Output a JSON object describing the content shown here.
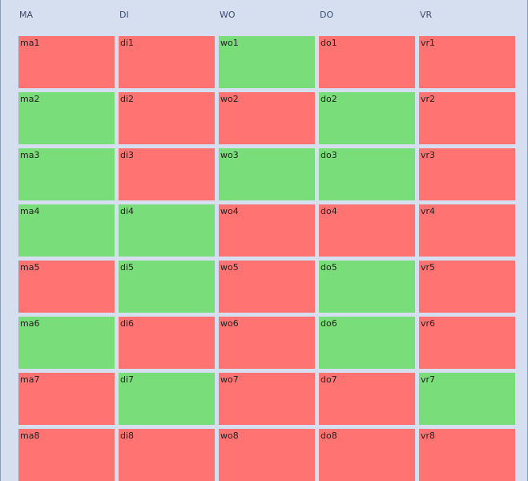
{
  "columns": [
    {
      "header": "MA",
      "cells": [
        {
          "label": "ma1",
          "color": "#ff7373"
        },
        {
          "label": "ma2",
          "color": "#79dd79"
        },
        {
          "label": "ma3",
          "color": "#79dd79"
        },
        {
          "label": "ma4",
          "color": "#79dd79"
        },
        {
          "label": "ma5",
          "color": "#ff7373"
        },
        {
          "label": "ma6",
          "color": "#79dd79"
        },
        {
          "label": "ma7",
          "color": "#ff7373"
        },
        {
          "label": "ma8",
          "color": "#ff7373"
        }
      ]
    },
    {
      "header": "DI",
      "cells": [
        {
          "label": "di1",
          "color": "#ff7373"
        },
        {
          "label": "di2",
          "color": "#ff7373"
        },
        {
          "label": "di3",
          "color": "#ff7373"
        },
        {
          "label": "di4",
          "color": "#79dd79"
        },
        {
          "label": "di5",
          "color": "#79dd79"
        },
        {
          "label": "di6",
          "color": "#ff7373"
        },
        {
          "label": "di7",
          "color": "#79dd79"
        },
        {
          "label": "di8",
          "color": "#ff7373"
        }
      ]
    },
    {
      "header": "WO",
      "cells": [
        {
          "label": "wo1",
          "color": "#79dd79"
        },
        {
          "label": "wo2",
          "color": "#ff7373"
        },
        {
          "label": "wo3",
          "color": "#79dd79"
        },
        {
          "label": "wo4",
          "color": "#ff7373"
        },
        {
          "label": "wo5",
          "color": "#ff7373"
        },
        {
          "label": "wo6",
          "color": "#ff7373"
        },
        {
          "label": "wo7",
          "color": "#ff7373"
        },
        {
          "label": "wo8",
          "color": "#ff7373"
        }
      ]
    },
    {
      "header": "DO",
      "cells": [
        {
          "label": "do1",
          "color": "#ff7373"
        },
        {
          "label": "do2",
          "color": "#79dd79"
        },
        {
          "label": "do3",
          "color": "#79dd79"
        },
        {
          "label": "do4",
          "color": "#ff7373"
        },
        {
          "label": "do5",
          "color": "#79dd79"
        },
        {
          "label": "do6",
          "color": "#79dd79"
        },
        {
          "label": "do7",
          "color": "#ff7373"
        },
        {
          "label": "do8",
          "color": "#ff7373"
        }
      ]
    },
    {
      "header": "VR",
      "cells": [
        {
          "label": "vr1",
          "color": "#ff7373"
        },
        {
          "label": "vr2",
          "color": "#ff7373"
        },
        {
          "label": "vr3",
          "color": "#ff7373"
        },
        {
          "label": "vr4",
          "color": "#ff7373"
        },
        {
          "label": "vr5",
          "color": "#ff7373"
        },
        {
          "label": "vr6",
          "color": "#ff7373"
        },
        {
          "label": "vr7",
          "color": "#79dd79"
        },
        {
          "label": "vr8",
          "color": "#ff7373"
        }
      ]
    }
  ]
}
